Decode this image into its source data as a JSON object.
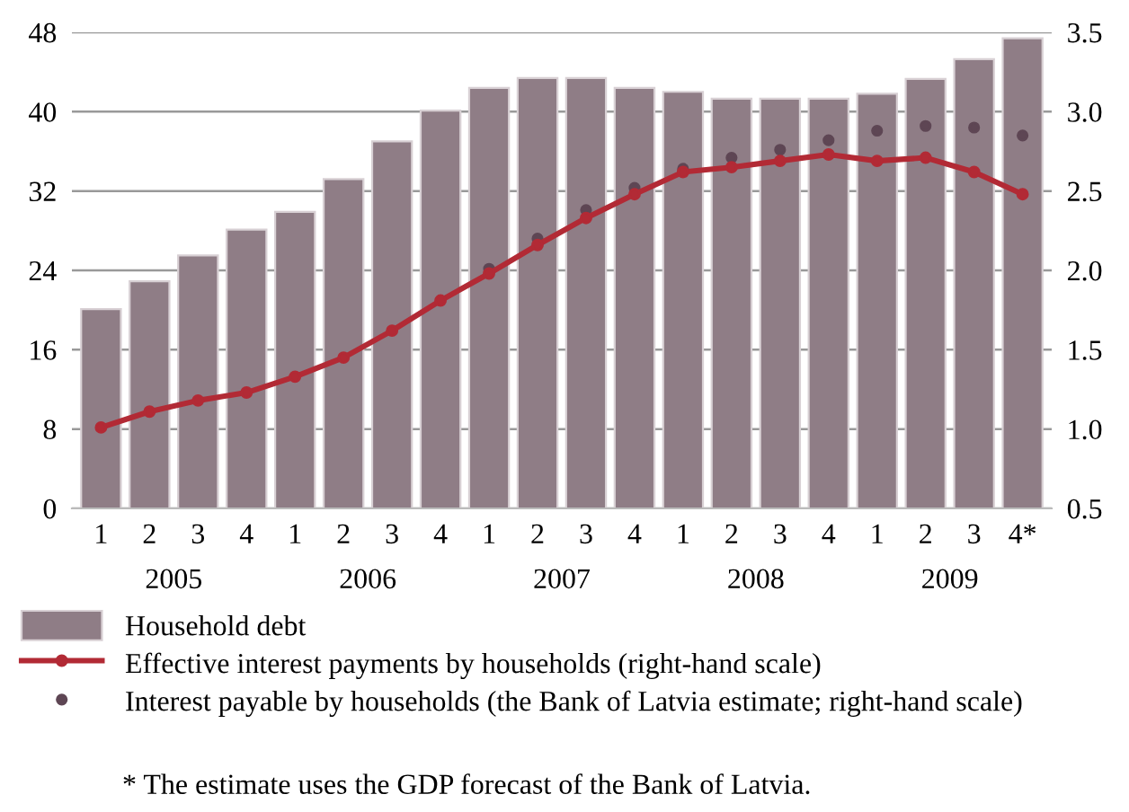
{
  "chart_data": {
    "type": "bar",
    "categories": [
      "1",
      "2",
      "3",
      "4",
      "1",
      "2",
      "3",
      "4",
      "1",
      "2",
      "3",
      "4",
      "1",
      "2",
      "3",
      "4",
      "1",
      "2",
      "3",
      "4*"
    ],
    "series": [
      {
        "name": "Household debt",
        "color": "#8f7d86",
        "values": [
          20.1,
          22.9,
          25.5,
          28.1,
          29.9,
          33.2,
          37.0,
          40.1,
          42.4,
          43.4,
          43.4,
          42.4,
          42.0,
          41.3,
          41.3,
          41.3,
          41.8,
          43.3,
          45.3,
          47.4
        ]
      },
      {
        "name": "Effective interest payments by households (right-hand scale)",
        "type": "line",
        "axis": "y2",
        "color": "#b22a35",
        "marker": "circle",
        "line_style": "solid",
        "values": [
          1.01,
          1.11,
          1.18,
          1.23,
          1.33,
          1.45,
          1.62,
          1.81,
          1.98,
          2.16,
          2.33,
          2.48,
          2.62,
          2.65,
          2.69,
          2.73,
          2.69,
          2.71,
          2.62,
          2.48
        ]
      },
      {
        "name": "Interest payable by households (the Bank of Latvia estimate; right-hand scale)",
        "type": "scatter",
        "axis": "y2",
        "color": "#5e4654",
        "marker": "circle",
        "values": [
          null,
          null,
          null,
          null,
          null,
          null,
          null,
          null,
          2.01,
          2.2,
          2.38,
          2.52,
          2.64,
          2.71,
          2.76,
          2.82,
          2.88,
          2.91,
          2.9,
          2.85
        ]
      }
    ],
    "ylim": [
      0,
      48
    ],
    "yticks": [
      0,
      8,
      16,
      24,
      32,
      40,
      48
    ],
    "y2lim": [
      0.5,
      3.5
    ],
    "y2ticks": [
      {
        "value": 0.5,
        "label": "0.5"
      },
      {
        "value": 1.0,
        "label": "1.0"
      },
      {
        "value": 1.5,
        "label": "1.5"
      },
      {
        "value": 2.0,
        "label": "2.0"
      },
      {
        "value": 2.5,
        "label": "2.5"
      },
      {
        "value": 3.0,
        "label": "3.0"
      },
      {
        "value": 3.5,
        "label": "3.5"
      }
    ],
    "grid": "y",
    "legend": "bottom",
    "annotations": [
      "2005",
      "2006",
      "2007",
      "2008",
      "2009",
      "* The estimate uses the GDP forecast of the Bank of Latvia."
    ]
  }
}
